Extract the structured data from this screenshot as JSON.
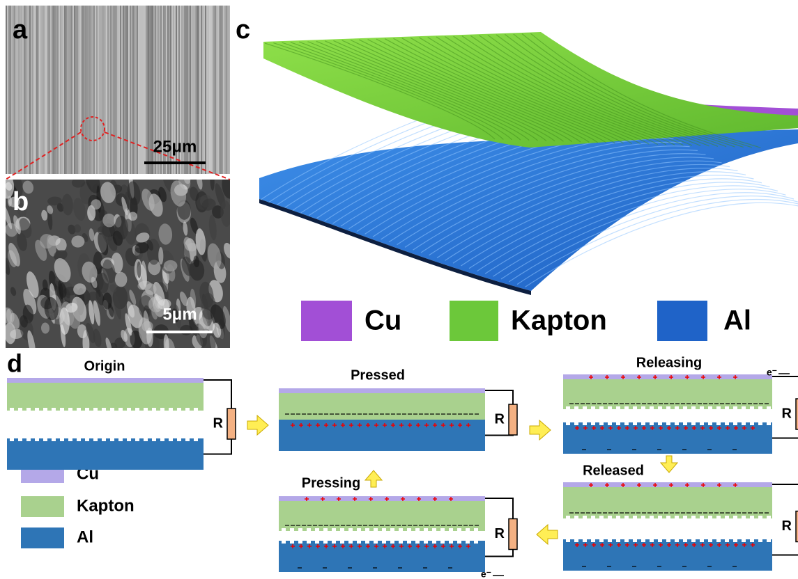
{
  "panels": {
    "a": {
      "label": "a",
      "scale_bar": "25μm"
    },
    "b": {
      "label": "b",
      "scale_bar": "5μm"
    },
    "c": {
      "label": "c",
      "legend": [
        "Cu",
        "Kapton",
        "Al"
      ]
    },
    "d": {
      "label": "d",
      "legend": [
        "Cu",
        "Kapton",
        "Al"
      ],
      "stages": [
        {
          "label": "Origin",
          "resistor": "R"
        },
        {
          "label": "Pressed",
          "resistor": "R"
        },
        {
          "label": "Releasing",
          "resistor": "R",
          "electron": "e⁻"
        },
        {
          "label": "Released",
          "resistor": "R"
        },
        {
          "label": "Pressing",
          "resistor": "R",
          "electron": "e⁻"
        }
      ]
    }
  }
}
